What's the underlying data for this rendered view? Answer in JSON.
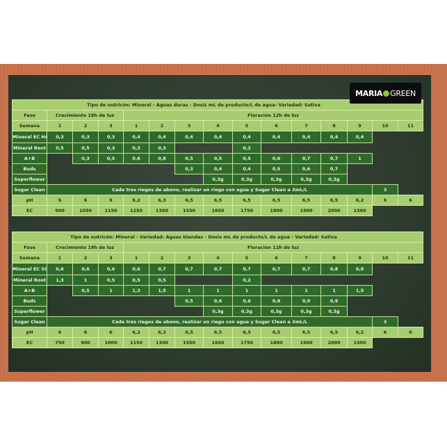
{
  "logo": {
    "text_left": "MARIA",
    "text_right": "GREEN",
    "colors": {
      "accent": "#8cc63e"
    }
  },
  "colors": {
    "light_cell": "#a8cd70",
    "dark_cell": "#2f6a2b",
    "board": "#2f3d30",
    "frame": "#c9734c"
  },
  "tables": [
    {
      "title": "Tipo de nutricón: Mineral  -  Aguas duras - Dosis mL de producto/L de agua- Variedad: Sativa",
      "phase_label": "Fase",
      "growth_label": "Crecimiento 18h de luz",
      "flower_label": "Floración 12h de luz",
      "week_label": "Semana",
      "weeks": [
        "1",
        "2",
        "3",
        "1",
        "2",
        "3",
        "4",
        "5",
        "6",
        "7",
        "8",
        "9",
        "10",
        "11"
      ],
      "rows": [
        {
          "label": "Mineral EC HARD",
          "values": [
            "0,3",
            "0,3",
            "0,3",
            "0,4",
            "0,4",
            "0,4",
            "0,4",
            "0,4",
            "0,4",
            "0,4",
            "0,4",
            "0,4",
            null,
            null
          ]
        },
        {
          "label": "Mineral Root",
          "values": [
            "0,5",
            "0,5",
            "0,3",
            "0,3",
            "0,3",
            null,
            null,
            "0,2",
            null,
            null,
            null,
            null,
            null,
            null
          ]
        },
        {
          "label": "A+B",
          "values": [
            null,
            "0,3",
            "0,5",
            "0,6",
            "0,8",
            "0,5",
            "0,5",
            "0,5",
            "0,6",
            "0,7",
            "0,7",
            "1",
            null,
            null
          ]
        },
        {
          "label": "Buds",
          "values": [
            null,
            null,
            null,
            null,
            null,
            "0,3",
            "0,4",
            "0,4",
            "0,5",
            "0,6",
            "0,7",
            null,
            null,
            null
          ]
        },
        {
          "label": "Superflower",
          "values": [
            null,
            null,
            null,
            null,
            null,
            null,
            "0,3g",
            "0,3g",
            "0,3g",
            "0,3g",
            "0,3g",
            null,
            null,
            null
          ]
        }
      ],
      "sugar_clean": {
        "label": "Sugar Clean",
        "text": "Cada tres riegos de abono, realizar un riego con agua y Sugar Clean a 3mL/L",
        "value": "3"
      },
      "ph": {
        "label": "pH",
        "values": [
          "6",
          "6",
          "6",
          "6,2",
          "6,3",
          "6,5",
          "6,5",
          "6,5",
          "6,5",
          "6,5",
          "6,5",
          "6,2",
          "6",
          "6"
        ]
      },
      "ec": {
        "label": "EC",
        "values": [
          "900",
          "1050",
          "1150",
          "1250",
          "1350",
          "1550",
          "1650",
          "1750",
          "1800",
          "1900",
          "2000",
          "1300",
          null,
          null
        ]
      }
    },
    {
      "title": "Tipo de nutricón: Mineral  -  Variedad: Aguas blandas - Dosis mL de producto/L de agua - Variedad: Sativa",
      "phase_label": "Fase",
      "growth_label": "Crecimiento 18h de luz",
      "flower_label": "Floración 12h de luz",
      "week_label": "Semana",
      "weeks": [
        "1",
        "2",
        "3",
        "1",
        "2",
        "3",
        "4",
        "5",
        "6",
        "7",
        "8",
        "9",
        "10",
        "11"
      ],
      "rows": [
        {
          "label": "Mineral EC SOFT",
          "values": [
            "0,6",
            "0,6",
            "0,6",
            "0,6",
            "0,7",
            "0,7",
            "0,7",
            "0,7",
            "0,7",
            "0,7",
            "0,8",
            "0,8",
            null,
            null
          ]
        },
        {
          "label": "Mineral Root",
          "values": [
            "1,3",
            "1",
            "0,5",
            "0,5",
            "0,5",
            null,
            null,
            "0,2",
            null,
            null,
            null,
            null,
            null,
            null
          ]
        },
        {
          "label": "A+B",
          "values": [
            null,
            "0,5",
            "1",
            "1,3",
            "1,5",
            "1",
            "1",
            "1",
            "1",
            "1",
            "1",
            "1,5",
            null,
            null
          ]
        },
        {
          "label": "Buds",
          "values": [
            null,
            null,
            null,
            null,
            null,
            "0,5",
            "0,6",
            "0,6",
            "0,8",
            "0,9",
            "0,9",
            null,
            null,
            null
          ]
        },
        {
          "label": "Superflower",
          "values": [
            null,
            null,
            null,
            null,
            null,
            null,
            "0,3g",
            "0,3g",
            "0,3g",
            "0,3g",
            "0,3g",
            null,
            null,
            null
          ]
        }
      ],
      "sugar_clean": {
        "label": "Sugar Clean",
        "text": "Cada tres riegos de abono, realizar un riego con agua y Sugar Clean a 3mL/L",
        "value": "3"
      },
      "ph": {
        "label": "pH",
        "values": [
          "6",
          "6",
          "6",
          "6,2",
          "6,3",
          "6,5",
          "6,5",
          "6,5",
          "6,5",
          "6,5",
          "6,5",
          "6,2",
          "6",
          "6"
        ]
      },
      "ec": {
        "label": "EC",
        "values": [
          "750",
          "900",
          "1000",
          "1150",
          "1300",
          "1550",
          "1650",
          "1750",
          "1800",
          "1900",
          "2000",
          "1300",
          null,
          null
        ]
      }
    }
  ]
}
